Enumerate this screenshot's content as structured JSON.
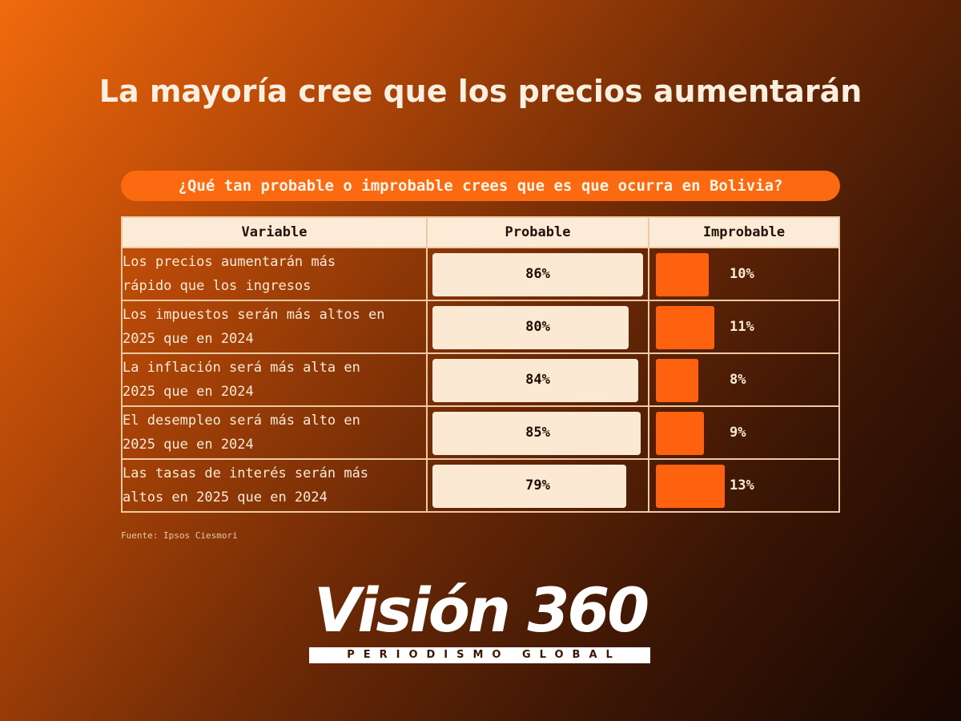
{
  "title": "La mayoría cree que los precios aumentarán",
  "question": "¿Qué tan probable o improbable crees que es que ocurra en Bolivia?",
  "chart_data": {
    "type": "table",
    "columns": [
      "Variable",
      "Probable",
      "Improbable"
    ],
    "rows": [
      {
        "variable": "Los precios aumentarán más\nrápido que los ingresos",
        "probable": 86,
        "improbable": 10,
        "probable_label": "86%",
        "improbable_label": "10%"
      },
      {
        "variable": "Los impuestos serán más altos en\n2025 que en 2024",
        "probable": 80,
        "improbable": 11,
        "probable_label": "80%",
        "improbable_label": "11%"
      },
      {
        "variable": "La inflación será más alta en\n2025 que en 2024",
        "probable": 84,
        "improbable": 8,
        "probable_label": "84%",
        "improbable_label": "8%"
      },
      {
        "variable": "El desempleo será más alto en\n2025 que en 2024",
        "probable": 85,
        "improbable": 9,
        "probable_label": "85%",
        "improbable_label": "9%"
      },
      {
        "variable": "Las tasas de interés serán más\naltos en  2025 que en 2024",
        "probable": 79,
        "improbable": 13,
        "probable_label": "79%",
        "improbable_label": "13%"
      }
    ],
    "colors": {
      "probable": "#fbe9d4",
      "improbable": "#ff620e"
    }
  },
  "source": "Fuente: Ipsos Ciesmori",
  "logo": {
    "name": "Visión 360",
    "tagline": "PERIODISMO GLOBAL"
  }
}
